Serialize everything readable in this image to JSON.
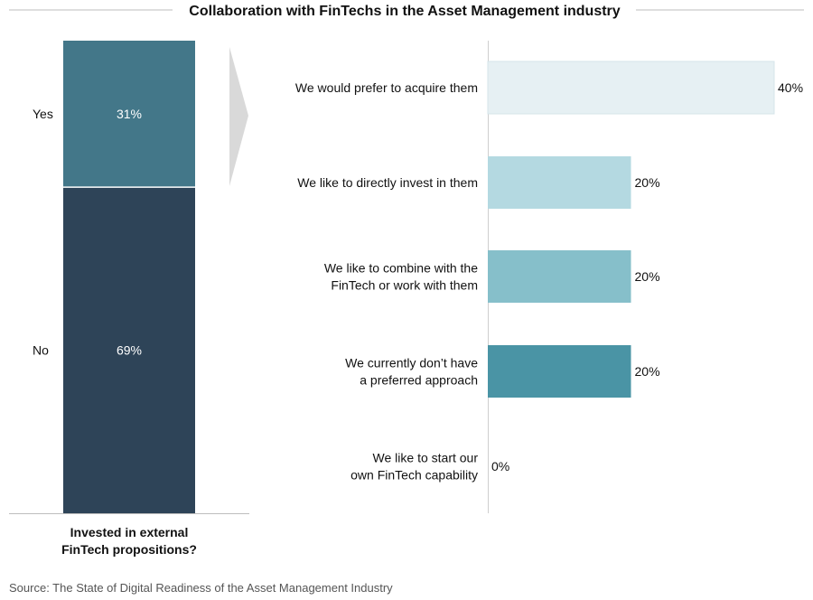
{
  "chart_data": [
    {
      "type": "bar",
      "orientation": "vertical-stacked",
      "title": "Collaboration with FinTechs in the Asset Management industry",
      "xlabel_lines": [
        "Invested in external",
        "FinTech propositions?"
      ],
      "categories": [
        "Yes",
        "No"
      ],
      "values": [
        31,
        69
      ],
      "value_labels": [
        "31%",
        "69%"
      ],
      "colors": [
        "#437789",
        "#2e4458"
      ]
    },
    {
      "type": "bar",
      "orientation": "horizontal",
      "categories": [
        [
          "We would prefer to acquire them"
        ],
        [
          "We like to directly invest in them"
        ],
        [
          "We like to combine with the",
          "FinTech or work with them"
        ],
        [
          "We currently don’t have",
          "a preferred approach"
        ],
        [
          "We like to start our",
          "own FinTech capability"
        ]
      ],
      "values": [
        40,
        20,
        20,
        20,
        0
      ],
      "value_labels": [
        "40%",
        "20%",
        "20%",
        "20%",
        "0%"
      ],
      "xlim": [
        0,
        40
      ],
      "colors": [
        "#e6f0f3",
        "#b4d9e1",
        "#86bfca",
        "#4a94a5",
        "#4a94a5"
      ]
    }
  ],
  "source": "Source: The State of Digital Readiness of the Asset Management Industry"
}
